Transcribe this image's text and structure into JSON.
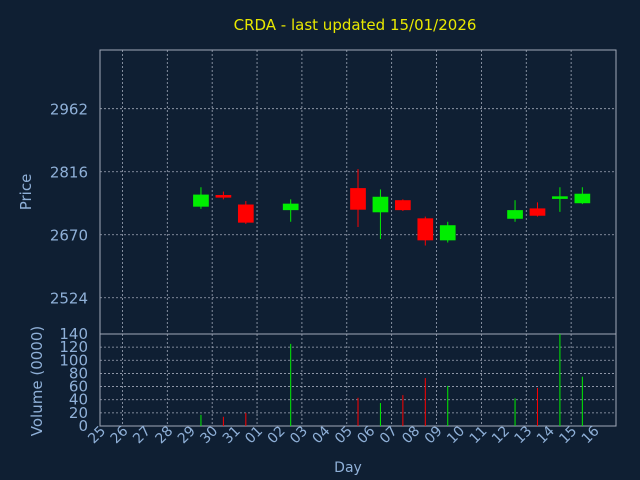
{
  "chart_data": {
    "type": "candlestick",
    "title": "CRDA - last updated 15/01/2026",
    "xlabel": "Day",
    "price_panel": {
      "ylabel": "Price",
      "yticks": [
        2524,
        2670,
        2816,
        2962
      ],
      "ylim": [
        2440,
        3098
      ]
    },
    "volume_panel": {
      "ylabel": "Volume (0000)",
      "yticks": [
        0,
        20,
        40,
        60,
        80,
        100,
        120,
        140
      ],
      "ylim": [
        0,
        140
      ]
    },
    "categories": [
      "25",
      "26",
      "27",
      "28",
      "29",
      "30",
      "31",
      "01",
      "02",
      "03",
      "04",
      "05",
      "06",
      "07",
      "08",
      "09",
      "10",
      "11",
      "12",
      "13",
      "14",
      "15",
      "16"
    ],
    "candles": [
      {
        "day": "29",
        "open": 2735,
        "close": 2763,
        "high": 2780,
        "low": 2730
      },
      {
        "day": "30",
        "open": 2762,
        "close": 2756,
        "high": 2770,
        "low": 2752
      },
      {
        "day": "31",
        "open": 2740,
        "close": 2698,
        "high": 2748,
        "low": 2695
      },
      {
        "day": "02",
        "open": 2727,
        "close": 2742,
        "high": 2752,
        "low": 2700
      },
      {
        "day": "05",
        "open": 2778,
        "close": 2728,
        "high": 2822,
        "low": 2688
      },
      {
        "day": "06",
        "open": 2722,
        "close": 2758,
        "high": 2775,
        "low": 2660
      },
      {
        "day": "07",
        "open": 2750,
        "close": 2727,
        "high": 2752,
        "low": 2725
      },
      {
        "day": "08",
        "open": 2708,
        "close": 2657,
        "high": 2712,
        "low": 2645
      },
      {
        "day": "09",
        "open": 2657,
        "close": 2692,
        "high": 2700,
        "low": 2652
      },
      {
        "day": "12",
        "open": 2707,
        "close": 2727,
        "high": 2750,
        "low": 2700
      },
      {
        "day": "13",
        "open": 2731,
        "close": 2714,
        "high": 2745,
        "low": 2712
      },
      {
        "day": "14",
        "open": 2753,
        "close": 2759,
        "high": 2780,
        "low": 2723
      },
      {
        "day": "15",
        "open": 2743,
        "close": 2765,
        "high": 2780,
        "low": 2741
      }
    ],
    "volume": [
      {
        "day": "29",
        "value": 17
      },
      {
        "day": "30",
        "value": 14
      },
      {
        "day": "31",
        "value": 20
      },
      {
        "day": "02",
        "value": 125
      },
      {
        "day": "05",
        "value": 43
      },
      {
        "day": "06",
        "value": 35
      },
      {
        "day": "07",
        "value": 47
      },
      {
        "day": "08",
        "value": 73
      },
      {
        "day": "09",
        "value": 61
      },
      {
        "day": "12",
        "value": 42
      },
      {
        "day": "13",
        "value": 58
      },
      {
        "day": "14",
        "value": 140
      },
      {
        "day": "15",
        "value": 75
      }
    ],
    "grid": true,
    "colors": {
      "background": "#0f1f33",
      "axis_text": "#8fb0d8",
      "title": "#e8e800",
      "grid": "#a0a8b8",
      "up": "#00ee00",
      "down": "#ff0000"
    }
  }
}
